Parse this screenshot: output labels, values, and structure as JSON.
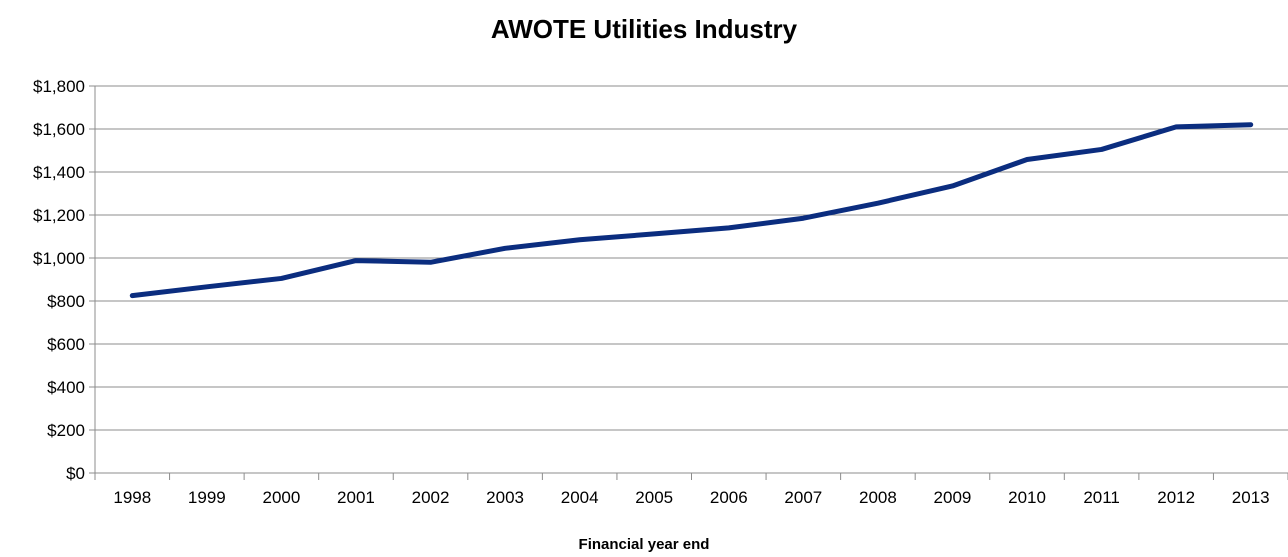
{
  "chart_data": {
    "type": "line",
    "title": "AWOTE Utilities Industry",
    "xlabel": "Financial year end",
    "ylabel": "",
    "ylim": [
      0,
      1800
    ],
    "y_ticks": [
      "$0",
      "$200",
      "$400",
      "$600",
      "$800",
      "$1,000",
      "$1,200",
      "$1,400",
      "$1,600",
      "$1,800"
    ],
    "y_tick_values": [
      0,
      200,
      400,
      600,
      800,
      1000,
      1200,
      1400,
      1600,
      1800
    ],
    "categories": [
      "1998",
      "1999",
      "2000",
      "2001",
      "2002",
      "2003",
      "2004",
      "2005",
      "2006",
      "2007",
      "2008",
      "2009",
      "2010",
      "2011",
      "2012",
      "2013"
    ],
    "series": [
      {
        "values": [
          825,
          866,
          905,
          988,
          980,
          1045,
          1085,
          1112,
          1140,
          1185,
          1255,
          1335,
          1458,
          1505,
          1610,
          1620
        ],
        "color": "#0B2D7F"
      }
    ],
    "grid": true,
    "legend": "none"
  }
}
